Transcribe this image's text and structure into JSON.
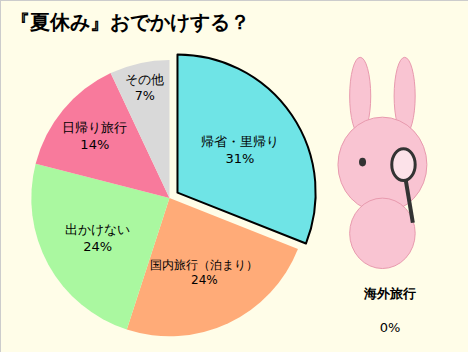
{
  "chart_data": {
    "type": "pie",
    "title": "『夏休み』おでかけする？",
    "categories": [
      "帰省・里帰り",
      "国内旅行（泊まり）",
      "出かけない",
      "日帰り旅行",
      "その他",
      "海外旅行"
    ],
    "values": [
      31,
      24,
      24,
      14,
      7,
      0
    ],
    "value_labels": [
      "31%",
      "24%",
      "24%",
      "14%",
      "7%",
      "0%"
    ],
    "colors": [
      "#6fe4e6",
      "#ffab78",
      "#aaf8a0",
      "#f87a9c",
      "#d9d9d9",
      "#000000"
    ],
    "data_labels": true
  }
}
